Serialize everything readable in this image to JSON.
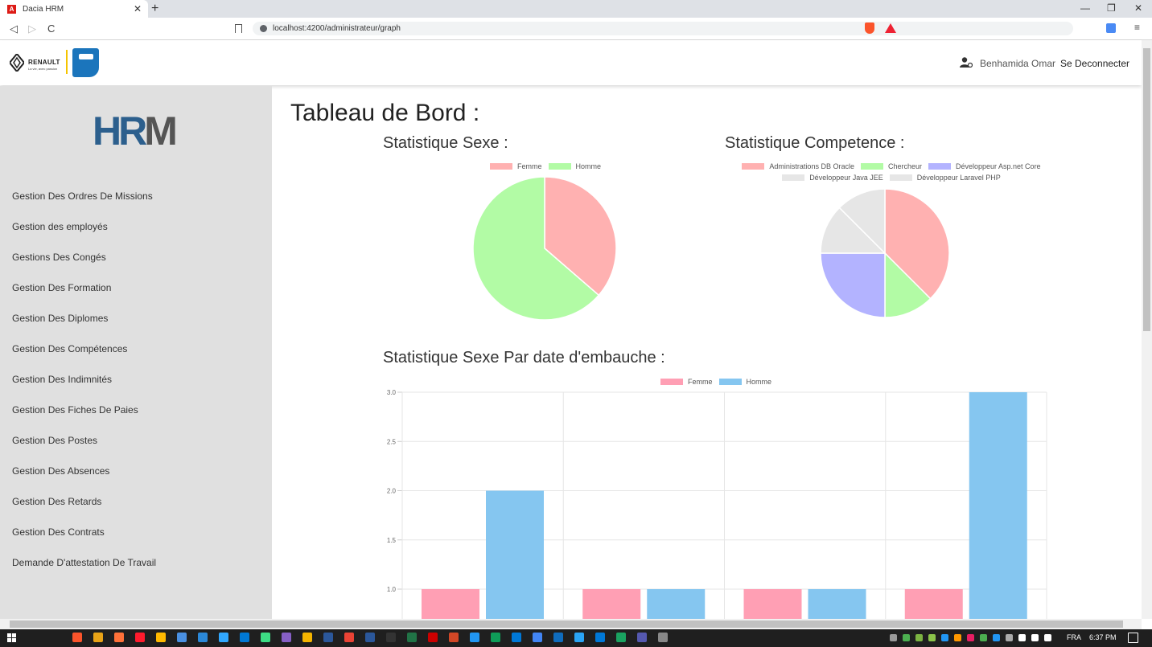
{
  "browser": {
    "tab_title": "Dacia HRM",
    "tab_close": "✕",
    "new_tab": "+",
    "url": "localhost:4200/administrateur/graph",
    "back": "◁",
    "forward": "▷",
    "reload": "C",
    "minimize": "—",
    "maximize": "❐",
    "close": "✕"
  },
  "header": {
    "brand_text": "RENAULT",
    "brand_sub": "La vie, avec passion",
    "user_name": "Benhamida Omar",
    "logout_label": "Se Deconnecter"
  },
  "sidebar": {
    "logo": "HRM",
    "items": [
      {
        "label": "Gestion Des Ordres De Missions"
      },
      {
        "label": "Gestion des employés"
      },
      {
        "label": "Gestions Des Congés"
      },
      {
        "label": "Gestion Des Formation"
      },
      {
        "label": "Gestion Des Diplomes"
      },
      {
        "label": "Gestion Des Compétences"
      },
      {
        "label": "Gestion Des Indimnités"
      },
      {
        "label": "Gestion Des Fiches De Paies"
      },
      {
        "label": "Gestion Des Postes"
      },
      {
        "label": "Gestion Des Absences"
      },
      {
        "label": "Gestion Des Retards"
      },
      {
        "label": "Gestion Des Contrats"
      },
      {
        "label": "Demande D'attestation De Travail"
      }
    ]
  },
  "main": {
    "title": "Tableau de Bord :",
    "sexe_title": "Statistique Sexe :",
    "competence_title": "Statistique Competence :",
    "embauche_title": "Statistique Sexe Par date d'embauche :"
  },
  "colors": {
    "femme_pie": "#ffb1b1",
    "homme_pie": "#b2fba5",
    "femme_bar": "#ff9fb4",
    "homme_bar": "#85c6f0",
    "oracle": "#ffb1b1",
    "chercheur": "#b2fba5",
    "aspnet": "#b3b3ff",
    "java": "#e6e6e6",
    "laravel": "#e6e6e6"
  },
  "chart_data": [
    {
      "type": "pie",
      "labels": [
        "Femme",
        "Homme"
      ],
      "values": [
        4,
        7
      ]
    },
    {
      "type": "pie",
      "labels": [
        "Administrations DB Oracle",
        "Chercheur",
        "Développeur Asp.net Core",
        "Développeur Java JEE",
        "Développeur Laravel PHP"
      ],
      "values": [
        3,
        1,
        2,
        1,
        1
      ]
    },
    {
      "type": "bar",
      "categories": [
        "",
        "",
        "",
        ""
      ],
      "series": [
        {
          "name": "Femme",
          "values": [
            1,
            1,
            1,
            1
          ]
        },
        {
          "name": "Homme",
          "values": [
            2,
            1,
            1,
            3
          ]
        }
      ],
      "ylim": [
        0,
        3
      ],
      "yticks": [
        "1.0",
        "1.5",
        "2.0",
        "2.5",
        "3.0"
      ],
      "legend": "top",
      "grid": true
    }
  ],
  "taskbar": {
    "lang": "FRA",
    "time": "6:37 PM"
  }
}
